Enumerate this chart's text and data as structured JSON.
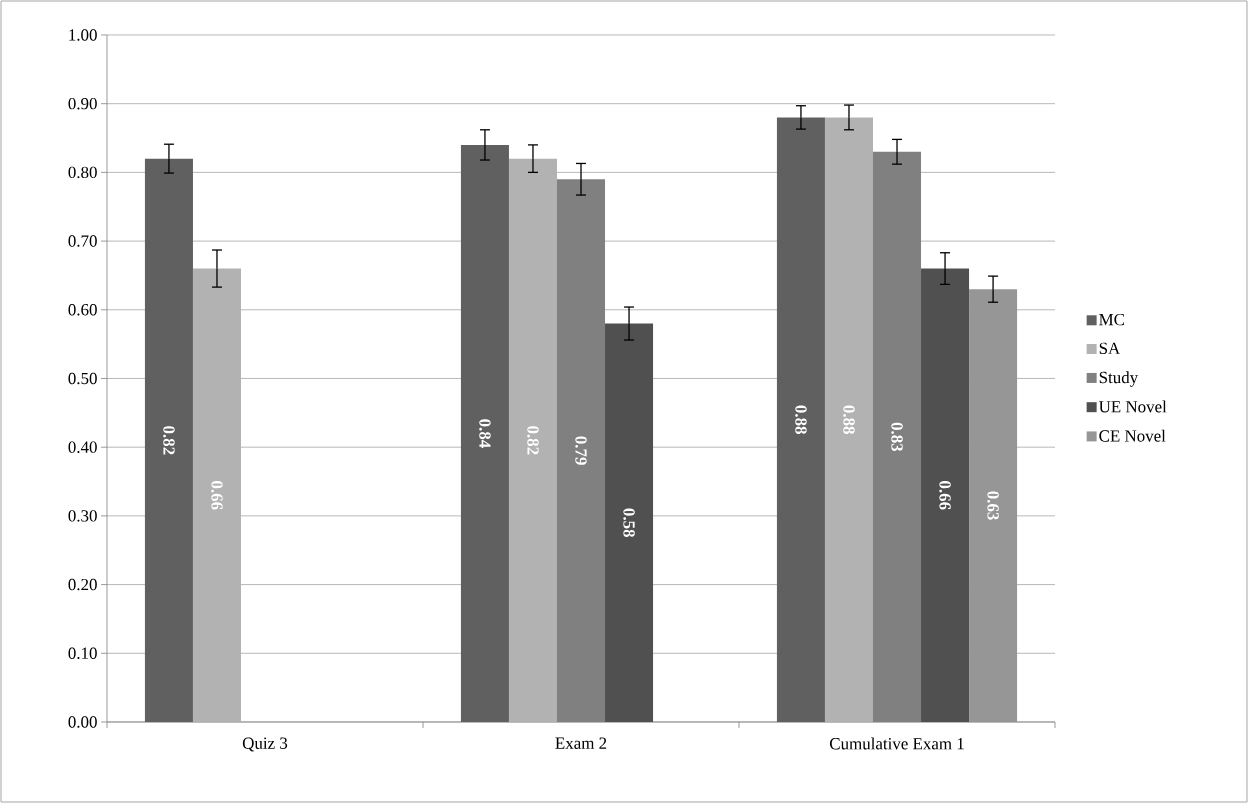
{
  "chart_data": {
    "type": "bar",
    "categories": [
      "Quiz 3",
      "Exam 2",
      "Cumulative Exam 1"
    ],
    "series": [
      {
        "name": "MC",
        "color": "#606060",
        "values": [
          0.82,
          0.84,
          0.88
        ],
        "errors": [
          0.021,
          0.022,
          0.017
        ]
      },
      {
        "name": "SA",
        "color": "#b2b2b2",
        "values": [
          0.66,
          0.82,
          0.88
        ],
        "errors": [
          0.027,
          0.02,
          0.018
        ]
      },
      {
        "name": "Study",
        "color": "#808080",
        "values": [
          null,
          0.79,
          0.83
        ],
        "errors": [
          null,
          0.023,
          0.018
        ]
      },
      {
        "name": "UE Novel",
        "color": "#505050",
        "values": [
          null,
          0.58,
          0.66
        ],
        "errors": [
          null,
          0.024,
          0.023
        ]
      },
      {
        "name": "CE Novel",
        "color": "#969696",
        "values": [
          null,
          null,
          0.63
        ],
        "errors": [
          null,
          null,
          0.019
        ]
      }
    ],
    "ylim": [
      0,
      1
    ],
    "yticks": [
      {
        "value": 0,
        "label": "0.00"
      },
      {
        "value": 0.1,
        "label": "0.10"
      },
      {
        "value": 0.2,
        "label": "0.20"
      },
      {
        "value": 0.3,
        "label": "0.30"
      },
      {
        "value": 0.4,
        "label": "0.40"
      },
      {
        "value": 0.5,
        "label": "0.50"
      },
      {
        "value": 0.6,
        "label": "0.60"
      },
      {
        "value": 0.7,
        "label": "0.70"
      },
      {
        "value": 0.8,
        "label": "0.80"
      },
      {
        "value": 0.9,
        "label": "0.90"
      },
      {
        "value": 1,
        "label": "1.00"
      }
    ],
    "grid": "y",
    "legend": "right",
    "data_labels": true
  }
}
